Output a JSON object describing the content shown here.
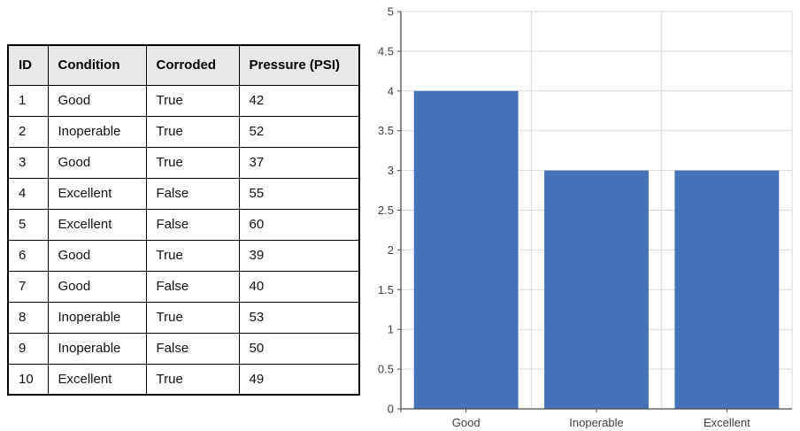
{
  "page": {
    "background": "#ffffff"
  },
  "table": {
    "name": "pipe-inspection-table",
    "headers": [
      "ID",
      "Condition",
      "Corroded",
      "Pressure (PSI)"
    ],
    "rows": [
      [
        "1",
        "Good",
        "True",
        "42"
      ],
      [
        "2",
        "Inoperable",
        "True",
        "52"
      ],
      [
        "3",
        "Good",
        "True",
        "37"
      ],
      [
        "4",
        "Excellent",
        "False",
        "55"
      ],
      [
        "5",
        "Excellent",
        "False",
        "60"
      ],
      [
        "6",
        "Good",
        "True",
        "39"
      ],
      [
        "7",
        "Good",
        "False",
        "40"
      ],
      [
        "8",
        "Inoperable",
        "True",
        "53"
      ],
      [
        "9",
        "Inoperable",
        "False",
        "50"
      ],
      [
        "10",
        "Excellent",
        "True",
        "49"
      ]
    ],
    "header_bg": "#E8E8E8",
    "border_color": "#000000"
  },
  "chart_data": {
    "type": "bar",
    "categories": [
      "Good",
      "Inoperable",
      "Excellent"
    ],
    "values": [
      4,
      3,
      3
    ],
    "title": "",
    "xlabel": "",
    "ylabel": "",
    "ylim": [
      0,
      5
    ],
    "ytick_step": 0.5,
    "ytick_labels": [
      "0",
      "0.5",
      "1",
      "1.5",
      "2",
      "2.5",
      "3",
      "3.5",
      "4",
      "4.5",
      "5"
    ],
    "grid": true,
    "legend_position": "none",
    "bar_color": "#4473B8",
    "gridline_color": "#D9D9D9",
    "axis_color": "#4a4a4a",
    "tick_label_color": "#404040"
  }
}
